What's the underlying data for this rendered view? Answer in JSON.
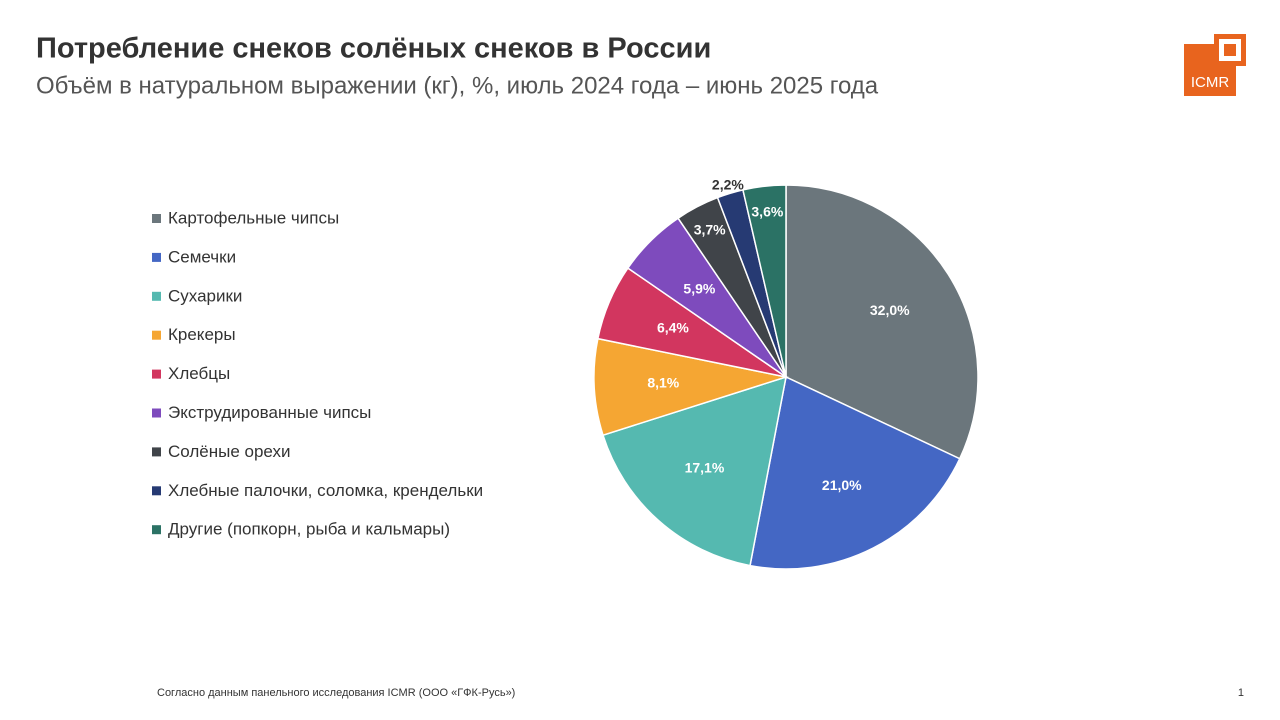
{
  "chart_data": {
    "type": "pie",
    "title": "Потребление снеков солёных снеков в России",
    "subtitle": "Объём в натуральном выражении (кг), %, июль 2024 года – июнь 2025 года",
    "categories": [
      "Картофельные чипсы",
      "Семечки",
      "Сухарики",
      "Крекеры",
      "Хлебцы",
      "Экструдированные чипсы",
      "Солёные орехи",
      "Хлебные палочки, соломка, крендельки",
      "Другие (попкорн, рыба и кальмары)"
    ],
    "values": [
      32.0,
      21.0,
      17.1,
      8.1,
      6.4,
      5.9,
      3.7,
      2.2,
      3.6
    ],
    "value_labels": [
      "32,0%",
      "21,0%",
      "17,1%",
      "8,1%",
      "6,4%",
      "5,9%",
      "3,7%",
      "2,2%",
      "3,6%"
    ],
    "colors": [
      "#6b767c",
      "#4467c4",
      "#55b9b0",
      "#f5a633",
      "#d2365f",
      "#7e4bbd",
      "#404449",
      "#263a73",
      "#2b7265"
    ],
    "legend": "left"
  },
  "footer": {
    "source": "Согласно данным панельного исследования ICMR (ООО «ГФК-Русь»)",
    "page": "1"
  },
  "logo": "ICMR"
}
